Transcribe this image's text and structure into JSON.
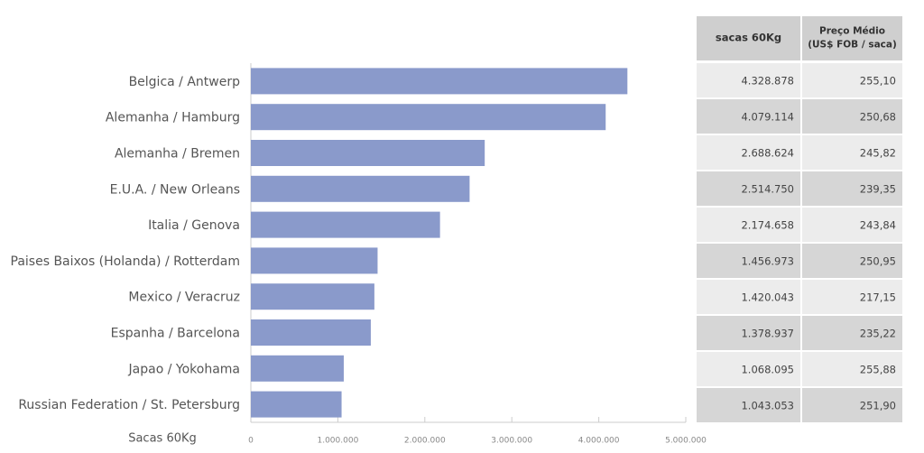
{
  "chart_data": {
    "type": "barh",
    "categories": [
      "Belgica / Antwerp",
      "Alemanha / Hamburg",
      "Alemanha / Bremen",
      "E.U.A. / New Orleans",
      "Italia / Genova",
      "Paises Baixos (Holanda) / Rotterdam",
      "Mexico / Veracruz",
      "Espanha / Barcelona",
      "Japao / Yokohama",
      "Russian Federation / St. Petersburg"
    ],
    "values": [
      4328878,
      4079114,
      2688624,
      2514750,
      2174658,
      1456973,
      1420043,
      1378937,
      1068095,
      1043053
    ],
    "color": "#8a9acb",
    "x_label": "Sacas 60Kg",
    "xlim": [
      0,
      5000000
    ],
    "xticks": [
      0,
      {
        "value": 1000000,
        "label": "1.000.000"
      },
      {
        "value": 2000000,
        "label": "2.000.000"
      },
      {
        "value": 3000000,
        "label": "3.000.000"
      },
      {
        "value": 4000000,
        "label": "4.000.000"
      },
      {
        "value": 5000000,
        "label": "5.000.000"
      }
    ]
  },
  "table": {
    "columns": [
      [
        "sacas 60Kg"
      ],
      [
        "Preço Médio",
        "(US$ FOB / saca)"
      ]
    ],
    "rows": [
      [
        "4.328.878",
        "255,10"
      ],
      [
        "4.079.114",
        "250,68"
      ],
      [
        "2.688.624",
        "245,82"
      ],
      [
        "2.514.750",
        "239,35"
      ],
      [
        "2.174.658",
        "243,84"
      ],
      [
        "1.456.973",
        "250,95"
      ],
      [
        "1.420.043",
        "217,15"
      ],
      [
        "1.378.937",
        "235,22"
      ],
      [
        "1.068.095",
        "255,88"
      ],
      [
        "1.043.053",
        "251,90"
      ]
    ]
  }
}
